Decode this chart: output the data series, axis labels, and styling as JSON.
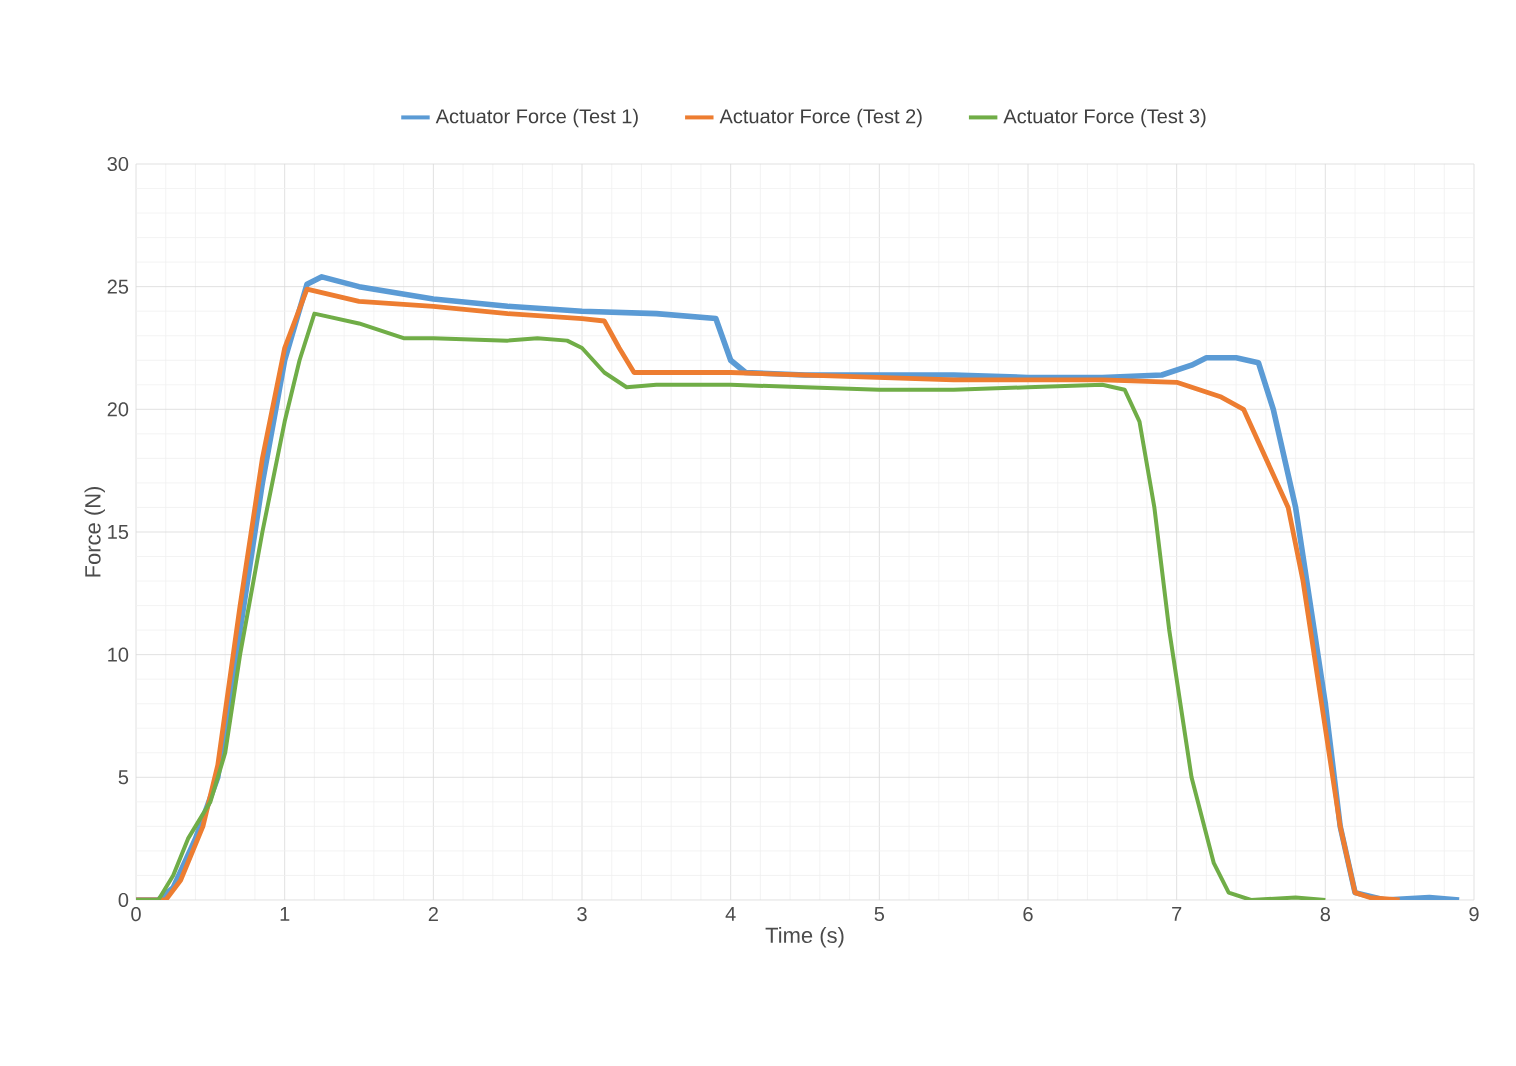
{
  "chart_data": {
    "type": "line",
    "xlabel": "Time (s)",
    "ylabel": "Force (N)",
    "legend": "top",
    "grid": true,
    "marker": "none",
    "line_style": "solid",
    "xlim": [
      0,
      9
    ],
    "xticks": [
      0,
      1,
      2,
      3,
      4,
      5,
      6,
      7,
      8,
      9
    ],
    "ylim": [
      0,
      30
    ],
    "yticks": [
      0,
      5,
      10,
      15,
      20,
      25,
      30
    ],
    "series": [
      {
        "name": "Actuator Force (Test 1)",
        "color": "#5b9bd5",
        "x": [
          0,
          0.15,
          0.25,
          0.4,
          0.55,
          0.7,
          0.85,
          1.0,
          1.15,
          1.25,
          1.5,
          2,
          2.5,
          3,
          3.5,
          3.9,
          4.0,
          4.1,
          4.5,
          5,
          5.5,
          6,
          6.5,
          6.9,
          7.1,
          7.2,
          7.4,
          7.55,
          7.65,
          7.8,
          8.0,
          8.1,
          8.2,
          8.4,
          8.7,
          8.9
        ],
        "values": [
          0,
          0,
          0.5,
          2.5,
          5,
          11,
          17,
          22,
          25.1,
          25.4,
          25,
          24.5,
          24.2,
          24,
          23.9,
          23.7,
          22,
          21.5,
          21.4,
          21.4,
          21.4,
          21.3,
          21.3,
          21.4,
          21.8,
          22.1,
          22.1,
          21.9,
          20,
          16,
          8,
          3,
          0.3,
          0,
          0.1,
          0
        ]
      },
      {
        "name": "Actuator Force (Test 2)",
        "color": "#ed7d31",
        "x": [
          0,
          0.2,
          0.3,
          0.45,
          0.55,
          0.7,
          0.85,
          1.0,
          1.15,
          1.5,
          2,
          2.5,
          3,
          3.15,
          3.25,
          3.35,
          3.5,
          4,
          4.5,
          5,
          5.5,
          6,
          6.5,
          7,
          7.3,
          7.45,
          7.6,
          7.75,
          7.85,
          8.0,
          8.1,
          8.2,
          8.3,
          8.5
        ],
        "values": [
          0,
          0,
          0.8,
          3,
          5.5,
          12,
          18,
          22.5,
          24.9,
          24.4,
          24.2,
          23.9,
          23.7,
          23.6,
          22.5,
          21.5,
          21.5,
          21.5,
          21.4,
          21.3,
          21.2,
          21.2,
          21.2,
          21.1,
          20.5,
          20,
          18,
          16,
          13,
          7,
          3,
          0.3,
          0.1,
          0
        ]
      },
      {
        "name": "Actuator Force (Test 3)",
        "color": "#70ad47",
        "x": [
          0,
          0.15,
          0.25,
          0.35,
          0.5,
          0.6,
          0.7,
          0.85,
          1.0,
          1.1,
          1.2,
          1.5,
          1.8,
          2,
          2.5,
          2.7,
          2.9,
          3.0,
          3.15,
          3.3,
          3.5,
          4,
          4.5,
          5,
          5.5,
          6,
          6.5,
          6.65,
          6.75,
          6.85,
          6.95,
          7.1,
          7.25,
          7.35,
          7.5,
          7.8,
          8.0
        ],
        "values": [
          0,
          0,
          1,
          2.5,
          4,
          6,
          10,
          15,
          19.5,
          22,
          23.9,
          23.5,
          22.9,
          22.9,
          22.8,
          22.9,
          22.8,
          22.5,
          21.5,
          20.9,
          21,
          21,
          20.9,
          20.8,
          20.8,
          20.9,
          21,
          20.8,
          19.5,
          16,
          11,
          5,
          1.5,
          0.3,
          0,
          0.1,
          0
        ]
      }
    ]
  }
}
